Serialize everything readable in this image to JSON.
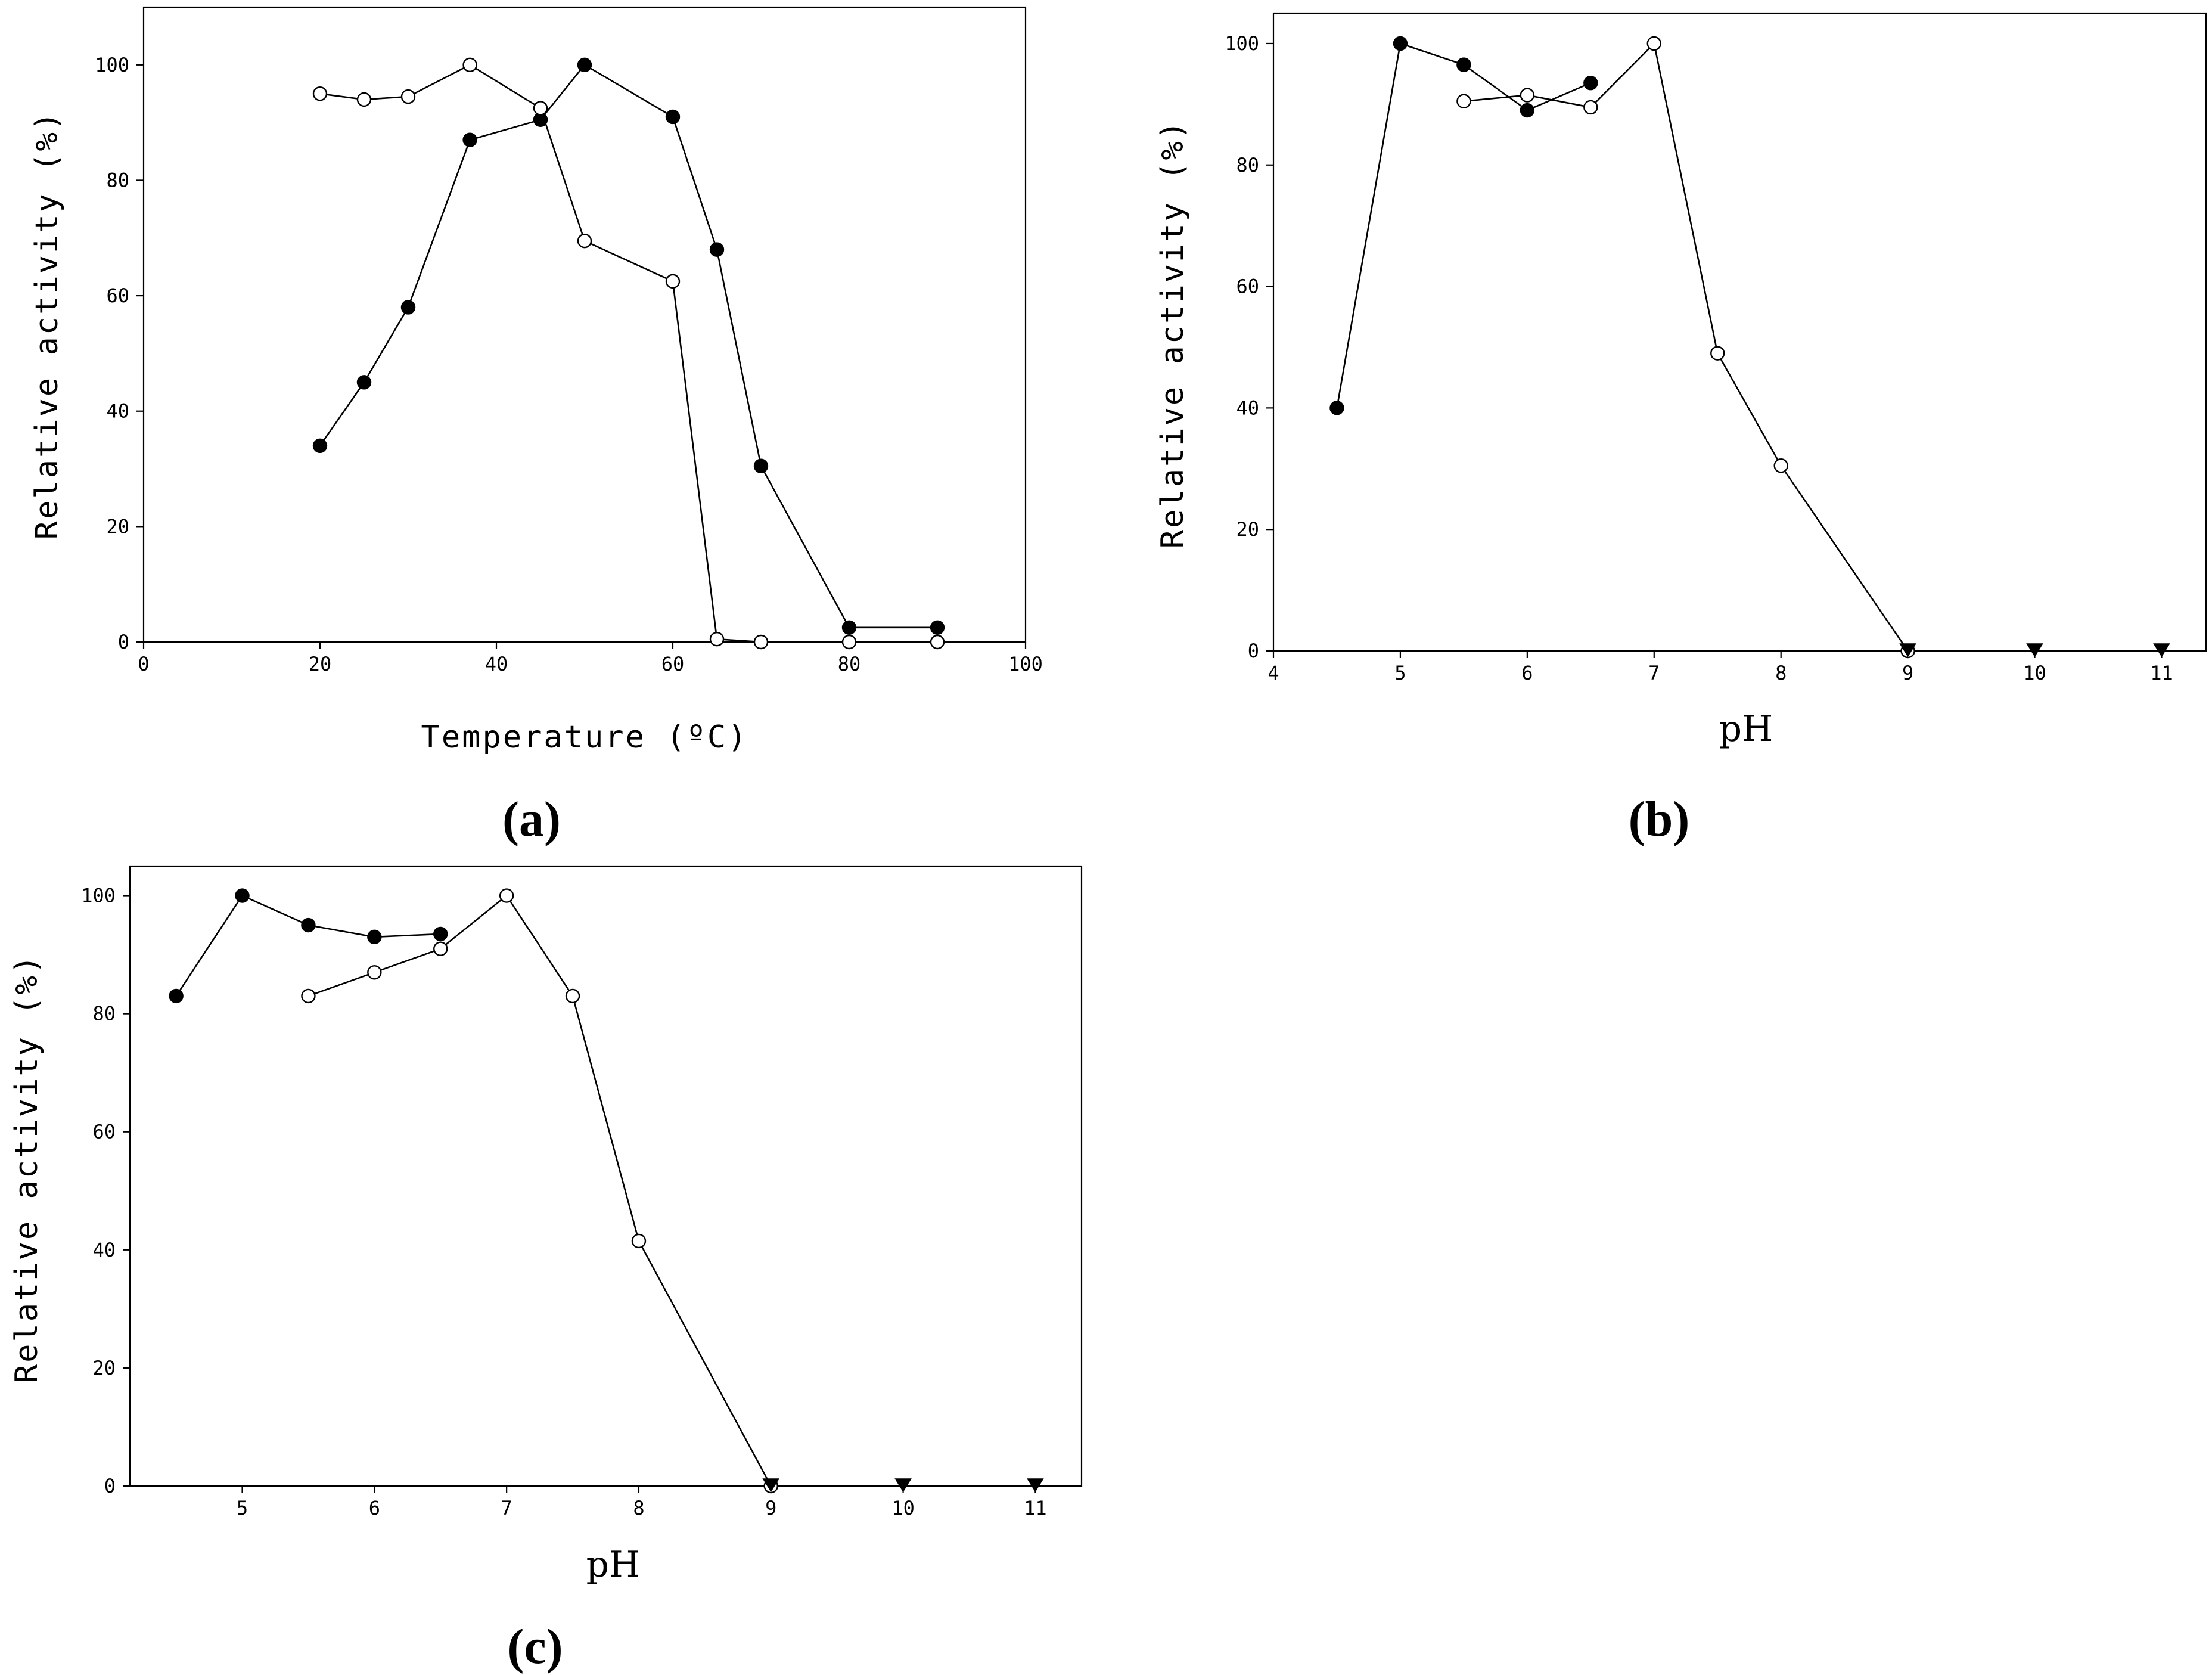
{
  "chart_data": [
    {
      "id": "a",
      "type": "line",
      "panel_label": "(a)",
      "xlabel": "Temperature (ºC)",
      "ylabel": "Relative activity (%)",
      "xlim": [
        0,
        100
      ],
      "ylim": [
        0,
        110
      ],
      "xticks": [
        0,
        20,
        40,
        60,
        80,
        100
      ],
      "yticks": [
        0,
        20,
        40,
        60,
        80,
        100
      ],
      "series": [
        {
          "marker": "filled-circle",
          "x": [
            20,
            25,
            30,
            37,
            45,
            50,
            60,
            65,
            70,
            80,
            90
          ],
          "y": [
            34,
            45,
            58,
            87,
            90.5,
            100,
            91,
            68,
            30.5,
            2.5,
            2.5
          ]
        },
        {
          "marker": "open-circle",
          "x": [
            20,
            25,
            30,
            37,
            45,
            50,
            60,
            65,
            70,
            80,
            90
          ],
          "y": [
            95,
            94,
            94.5,
            100,
            92.5,
            69.5,
            62.5,
            0.5,
            0,
            0,
            0
          ]
        }
      ]
    },
    {
      "id": "b",
      "type": "line",
      "panel_label": "(b)",
      "xlabel": "pH",
      "ylabel": "Relative activity (%)",
      "xlim": [
        4,
        11.35
      ],
      "ylim": [
        0,
        105
      ],
      "xticks": [
        4,
        5,
        6,
        7,
        8,
        9,
        10,
        11
      ],
      "yticks": [
        0,
        20,
        40,
        60,
        80,
        100
      ],
      "series": [
        {
          "marker": "filled-circle",
          "x": [
            4.5,
            5,
            5.5,
            6,
            6.5
          ],
          "y": [
            40,
            100,
            96.5,
            89,
            93.5
          ]
        },
        {
          "marker": "open-circle",
          "x": [
            5.5,
            6,
            6.5,
            7,
            7.5,
            8,
            9
          ],
          "y": [
            90.5,
            91.5,
            89.5,
            100,
            49,
            30.5,
            0
          ]
        },
        {
          "marker": "filled-triangle",
          "x": [
            9,
            10,
            11
          ],
          "y": [
            0,
            0,
            0
          ]
        }
      ]
    },
    {
      "id": "c",
      "type": "line",
      "panel_label": "(c)",
      "xlabel": "pH",
      "ylabel": "Relative activity (%)",
      "xlim": [
        4.15,
        11.35
      ],
      "ylim": [
        0,
        105
      ],
      "xticks": [
        5,
        6,
        7,
        8,
        9,
        10,
        11
      ],
      "yticks": [
        0,
        20,
        40,
        60,
        80,
        100
      ],
      "series": [
        {
          "marker": "filled-circle",
          "x": [
            4.5,
            5,
            5.5,
            6,
            6.5
          ],
          "y": [
            83,
            100,
            95,
            93,
            93.5
          ]
        },
        {
          "marker": "open-circle",
          "x": [
            5.5,
            6,
            6.5,
            7,
            7.5,
            8,
            9
          ],
          "y": [
            83,
            87,
            91,
            100,
            83,
            41.5,
            0
          ]
        },
        {
          "marker": "filled-triangle",
          "x": [
            9,
            10,
            11
          ],
          "y": [
            0,
            0,
            0
          ]
        }
      ]
    }
  ]
}
